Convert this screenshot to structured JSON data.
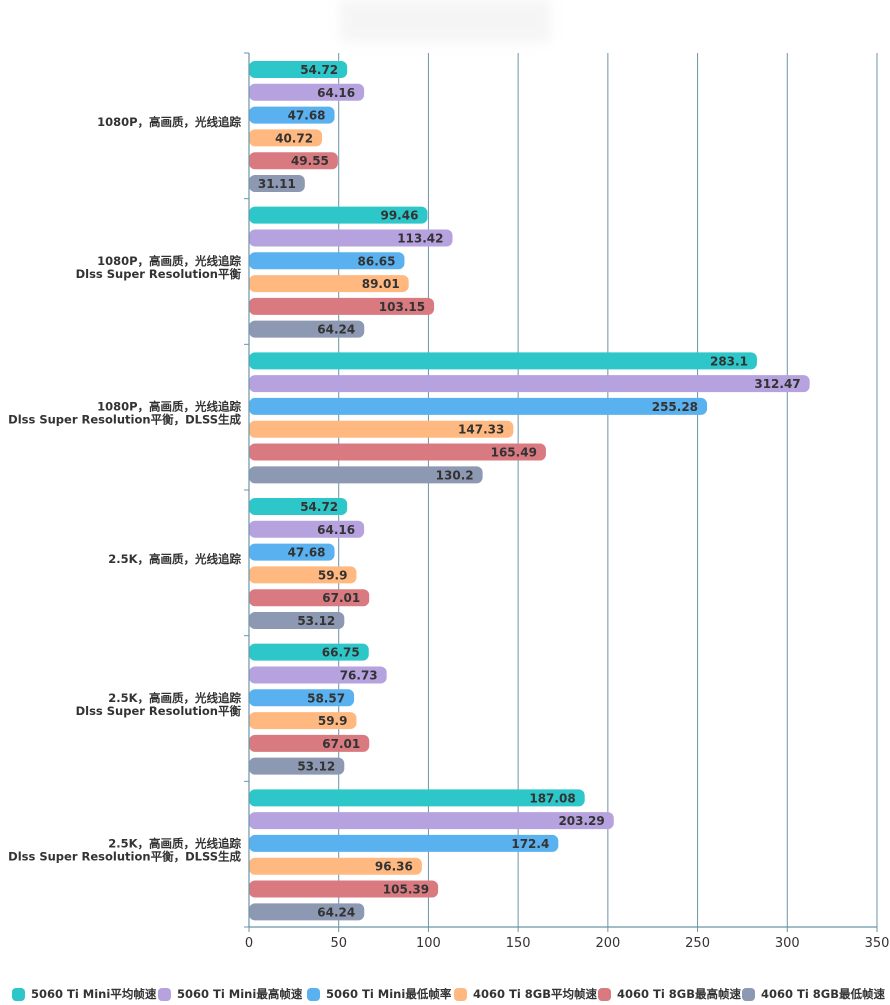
{
  "chart_data": {
    "type": "bar",
    "orientation": "horizontal",
    "categories": [
      [
        "1080P，高画质，光线追踪"
      ],
      [
        "1080P，高画质，光线追踪",
        "Dlss Super Resolution平衡"
      ],
      [
        "1080P，高画质，光线追踪",
        "Dlss Super Resolution平衡，DLSS生成"
      ],
      [
        "2.5K，高画质，光线追踪"
      ],
      [
        "2.5K，高画质，光线追踪",
        "Dlss Super Resolution平衡"
      ],
      [
        "2.5K，高画质，光线追踪",
        "Dlss Super Resolution平衡，DLSS生成"
      ]
    ],
    "series": [
      {
        "name": "5060 Ti Mini平均帧速",
        "color": "#2ec7c9",
        "values": [
          54.72,
          99.46,
          283.1,
          54.72,
          66.75,
          187.08
        ]
      },
      {
        "name": "5060 Ti Mini最高帧速",
        "color": "#b6a2de",
        "values": [
          64.16,
          113.42,
          312.47,
          64.16,
          76.73,
          203.29
        ]
      },
      {
        "name": "5060 Ti Mini最低帧率",
        "color": "#5ab1ef",
        "values": [
          47.68,
          86.65,
          255.28,
          47.68,
          58.57,
          172.4
        ]
      },
      {
        "name": "4060 Ti 8GB平均帧速",
        "color": "#ffb980",
        "values": [
          40.72,
          89.01,
          147.33,
          59.9,
          59.9,
          96.36
        ]
      },
      {
        "name": "4060 Ti 8GB最高帧速",
        "color": "#d87a80",
        "values": [
          49.55,
          103.15,
          165.49,
          67.01,
          67.01,
          105.39
        ]
      },
      {
        "name": "4060 Ti 8GB最低帧速",
        "color": "#8d98b3",
        "values": [
          31.11,
          64.24,
          130.2,
          53.12,
          53.12,
          64.24
        ]
      }
    ],
    "xlim": [
      0,
      350
    ],
    "xticks": [
      0,
      50,
      100,
      150,
      200,
      250,
      300,
      350
    ],
    "grid": true,
    "legend_position": "bottom",
    "axis_color": "#6b94a8",
    "label_color": "#333333"
  }
}
